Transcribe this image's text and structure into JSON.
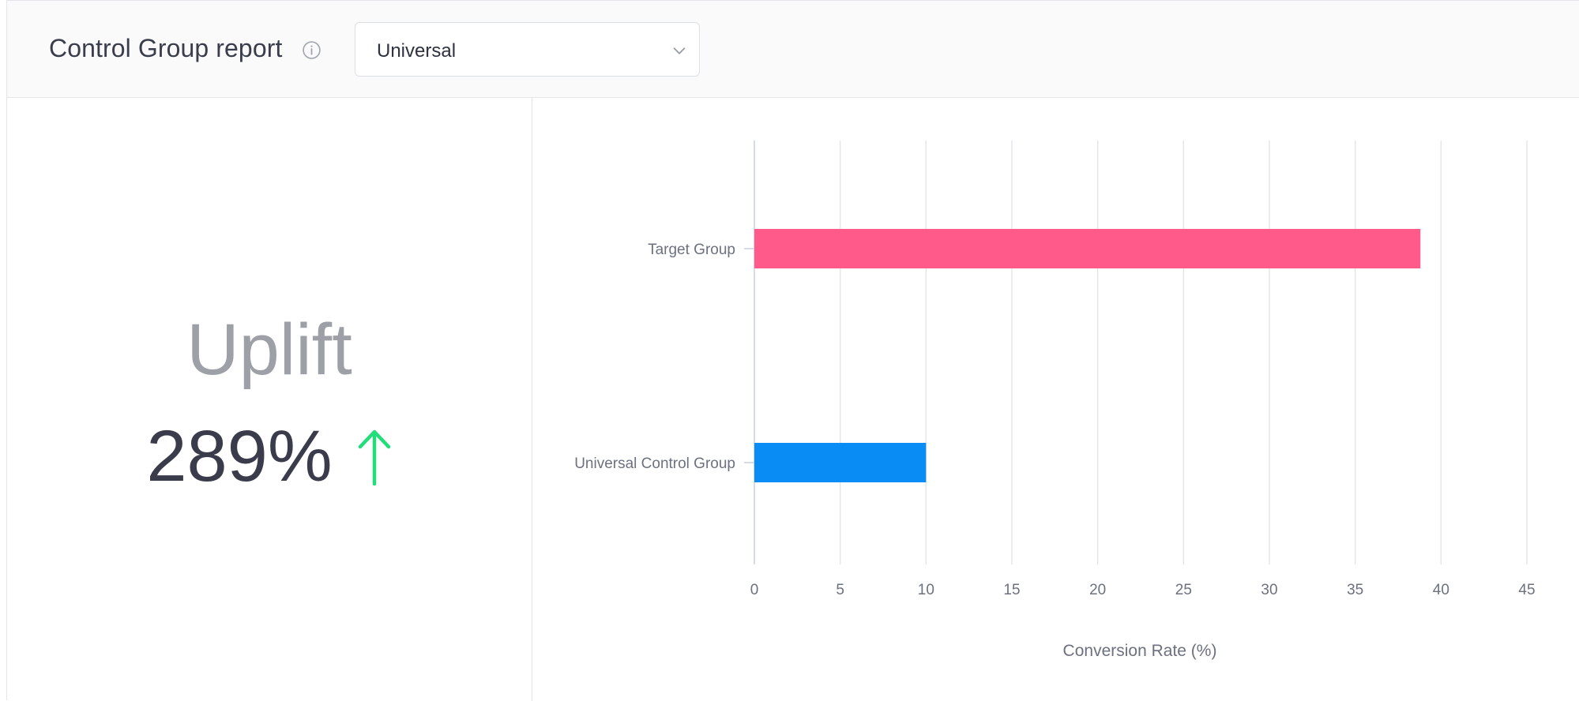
{
  "header": {
    "title": "Control Group report",
    "info_icon": "info-icon",
    "dropdown": {
      "selected": "Universal",
      "icon": "chevron-down-icon"
    }
  },
  "summary": {
    "label": "Uplift",
    "value": "289%",
    "trend_icon": "arrow-up-icon",
    "trend_color": "#22dd7a"
  },
  "chart_data": {
    "type": "bar",
    "orientation": "horizontal",
    "categories": [
      "Target Group",
      "Universal Control Group"
    ],
    "values": [
      38.8,
      10.0
    ],
    "colors": [
      "#ff5a8a",
      "#0a8cf5"
    ],
    "xlabel": "Conversion Rate (%)",
    "xlim": [
      0,
      45
    ],
    "xticks": [
      "0",
      "5",
      "10",
      "15",
      "20",
      "25",
      "30",
      "35",
      "40",
      "45"
    ],
    "grid": true
  }
}
